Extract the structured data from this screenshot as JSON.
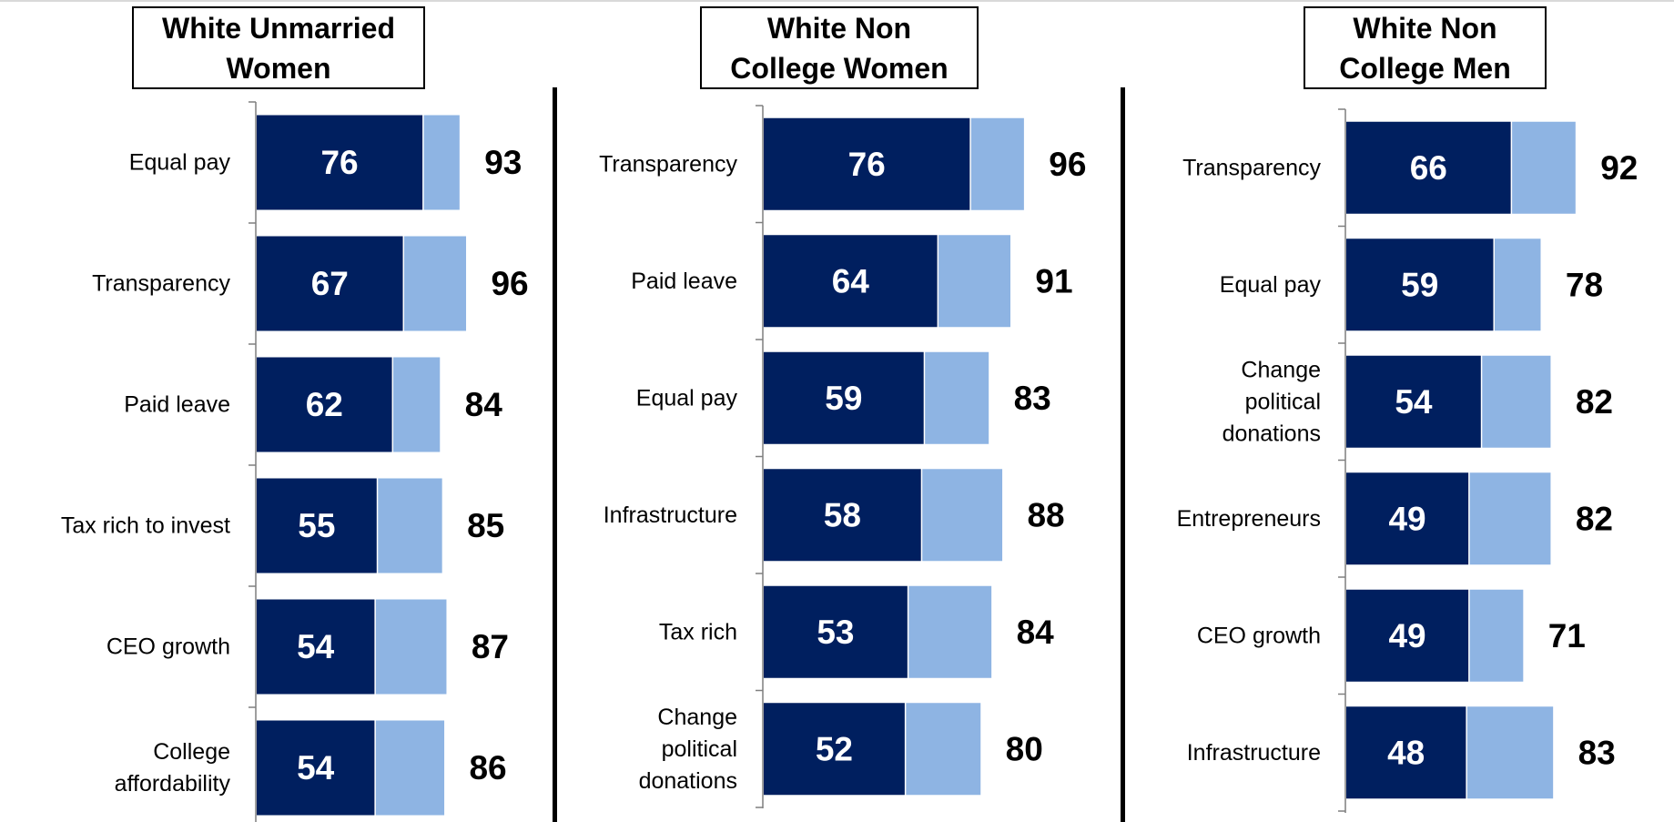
{
  "colors": {
    "strong": "#001f5f",
    "total": "#8eb4e3",
    "axis": "#7f7f7f"
  },
  "chart_data": [
    {
      "type": "bar",
      "orientation": "horizontal",
      "stacked": true,
      "title": "White Unmarried Women",
      "categories": [
        "Equal pay",
        "Transparency",
        "Paid leave",
        "Tax rich to invest",
        "CEO growth",
        "College affordability"
      ],
      "series": [
        {
          "values": [
            76,
            67,
            62,
            55,
            54,
            54
          ]
        },
        {
          "values": [
            93,
            96,
            84,
            85,
            87,
            86
          ]
        }
      ]
    },
    {
      "type": "bar",
      "orientation": "horizontal",
      "stacked": true,
      "title": "White Non College Women",
      "categories": [
        "Transparency",
        "Paid leave",
        "Equal pay",
        "Infrastructure",
        "Tax rich",
        "Change political donations"
      ],
      "series": [
        {
          "values": [
            76,
            64,
            59,
            58,
            53,
            52
          ]
        },
        {
          "values": [
            96,
            91,
            83,
            88,
            84,
            80
          ]
        }
      ]
    },
    {
      "type": "bar",
      "orientation": "horizontal",
      "stacked": true,
      "title": "White Non College Men",
      "categories": [
        "Transparency",
        "Equal pay",
        "Change political donations",
        "Entrepreneurs",
        "CEO growth",
        "Infrastructure"
      ],
      "series": [
        {
          "values": [
            66,
            59,
            54,
            49,
            49,
            48
          ]
        },
        {
          "values": [
            92,
            78,
            82,
            82,
            71,
            83
          ]
        }
      ]
    }
  ]
}
